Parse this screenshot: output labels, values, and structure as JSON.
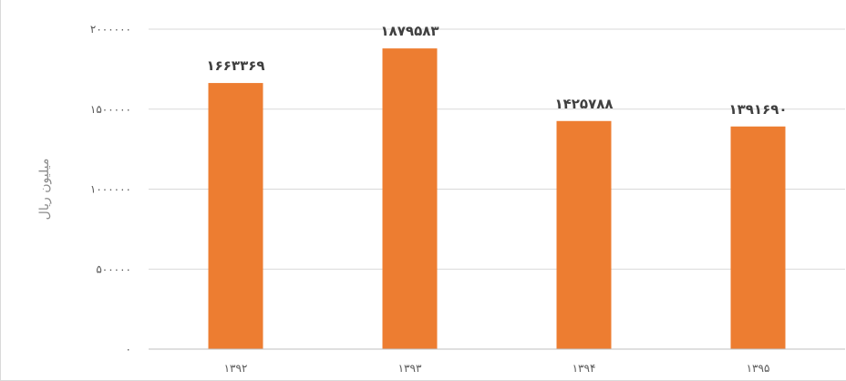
{
  "chart_data": {
    "type": "bar",
    "title": "",
    "ylabel": "میلیون ریال",
    "xlabel": "",
    "categories": [
      "۱۳۹۲",
      "۱۳۹۳",
      "۱۳۹۴",
      "۱۳۹۵"
    ],
    "values": [
      1663369,
      1879583,
      1425788,
      1391690
    ],
    "value_labels": [
      "۱۶۶۳۳۶۹",
      "۱۸۷۹۵۸۳",
      "۱۴۲۵۷۸۸",
      "۱۳۹۱۶۹۰"
    ],
    "ylim": [
      0,
      2000000
    ],
    "yticks": [
      0,
      500000,
      1000000,
      1500000,
      2000000
    ],
    "ytick_labels": [
      "۰",
      "۵۰۰۰۰۰",
      "۱۰۰۰۰۰۰",
      "۱۵۰۰۰۰۰",
      "۲۰۰۰۰۰۰"
    ],
    "bar_color": "#ED7D31",
    "grid": true,
    "legend": "none"
  }
}
